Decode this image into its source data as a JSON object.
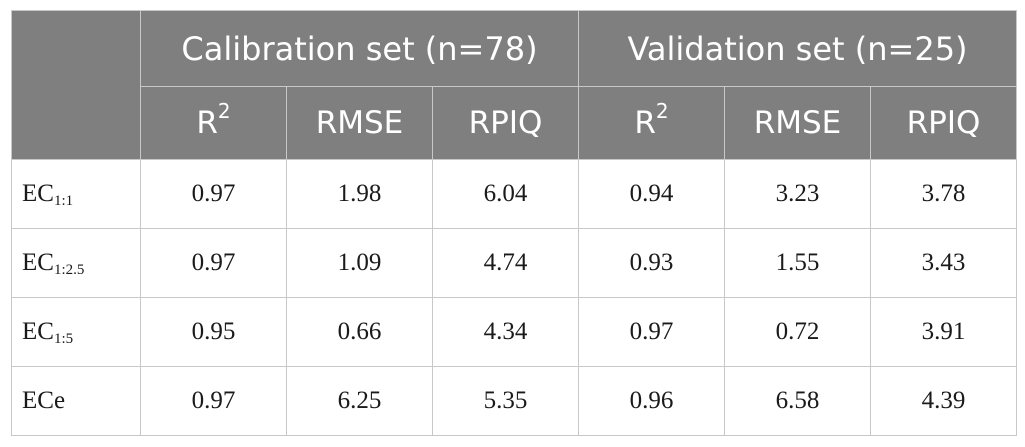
{
  "header": {
    "group1": "Calibration set (n=78)",
    "group2": "Validation set (n=25)",
    "cols": [
      {
        "base": "R",
        "sup": "2"
      },
      {
        "base": "RMSE",
        "sup": ""
      },
      {
        "base": "RPIQ",
        "sup": ""
      },
      {
        "base": "R",
        "sup": "2"
      },
      {
        "base": "RMSE",
        "sup": ""
      },
      {
        "base": "RPIQ",
        "sup": ""
      }
    ]
  },
  "rows": [
    {
      "base": "EC",
      "sub": "1:1",
      "values": [
        "0.97",
        "1.98",
        "6.04",
        "0.94",
        "3.23",
        "3.78"
      ]
    },
    {
      "base": "EC",
      "sub": "1:2.5",
      "values": [
        "0.97",
        "1.09",
        "4.74",
        "0.93",
        "1.55",
        "3.43"
      ]
    },
    {
      "base": "EC",
      "sub": "1:5",
      "values": [
        "0.95",
        "0.66",
        "4.34",
        "0.97",
        "0.72",
        "3.91"
      ]
    },
    {
      "base": "ECe",
      "sub": "",
      "values": [
        "0.97",
        "6.25",
        "5.35",
        "0.96",
        "6.58",
        "4.39"
      ]
    }
  ]
}
